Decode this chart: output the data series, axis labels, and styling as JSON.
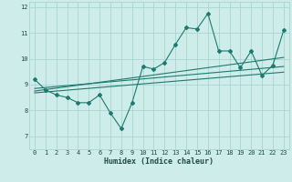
{
  "background_color": "#ceecea",
  "grid_color": "#a8d5d0",
  "line_color": "#1e7a6e",
  "marker_color": "#1e7a6e",
  "xlabel": "Humidex (Indice chaleur)",
  "xlim": [
    -0.5,
    23.5
  ],
  "ylim": [
    6.5,
    12.2
  ],
  "yticks": [
    7,
    8,
    9,
    10,
    11,
    12
  ],
  "xticks": [
    0,
    1,
    2,
    3,
    4,
    5,
    6,
    7,
    8,
    9,
    10,
    11,
    12,
    13,
    14,
    15,
    16,
    17,
    18,
    19,
    20,
    21,
    22,
    23
  ],
  "line1_x": [
    0,
    1,
    2,
    3,
    4,
    5,
    6,
    7,
    8,
    9,
    10,
    11,
    12,
    13,
    14,
    15,
    16,
    17,
    18,
    19,
    20,
    21,
    22,
    23
  ],
  "line1_y": [
    9.2,
    8.8,
    8.6,
    8.5,
    8.3,
    8.3,
    8.6,
    7.9,
    7.3,
    8.3,
    9.7,
    9.6,
    9.85,
    10.55,
    11.2,
    11.15,
    11.75,
    10.3,
    10.3,
    9.65,
    10.3,
    9.35,
    9.75,
    11.1
  ],
  "trend1_x": [
    0,
    23
  ],
  "trend1_y": [
    8.85,
    9.7
  ],
  "trend2_x": [
    0,
    23
  ],
  "trend2_y": [
    8.75,
    10.05
  ],
  "trend3_x": [
    0,
    23
  ],
  "trend3_y": [
    8.68,
    9.48
  ]
}
